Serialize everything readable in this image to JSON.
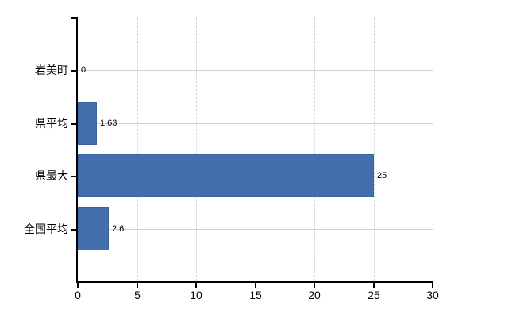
{
  "chart_data": {
    "type": "bar",
    "orientation": "horizontal",
    "title": "",
    "xlabel": "",
    "ylabel": "",
    "categories": [
      "岩美町",
      "県平均",
      "県最大",
      "全国平均"
    ],
    "values": [
      0,
      1.63,
      25,
      2.6
    ],
    "value_labels": [
      "0",
      "1.63",
      "25",
      "2.6"
    ],
    "xlim": [
      0,
      30
    ],
    "x_ticks": [
      0,
      5,
      10,
      15,
      20,
      25,
      30
    ],
    "x_tick_labels": [
      "0",
      "5",
      "10",
      "15",
      "20",
      "25",
      "30"
    ],
    "grid": true,
    "legend": false,
    "bar_color": "#4370ad",
    "bar_border_color": "#3a64a0",
    "h_gridline_color": "#ccd5cb",
    "v_gridline_color": "#d6d6d6",
    "axis_color": "#000000",
    "label_color": "#000000",
    "background_color": "#ffffff"
  },
  "chart_description": "横棒グラフ"
}
